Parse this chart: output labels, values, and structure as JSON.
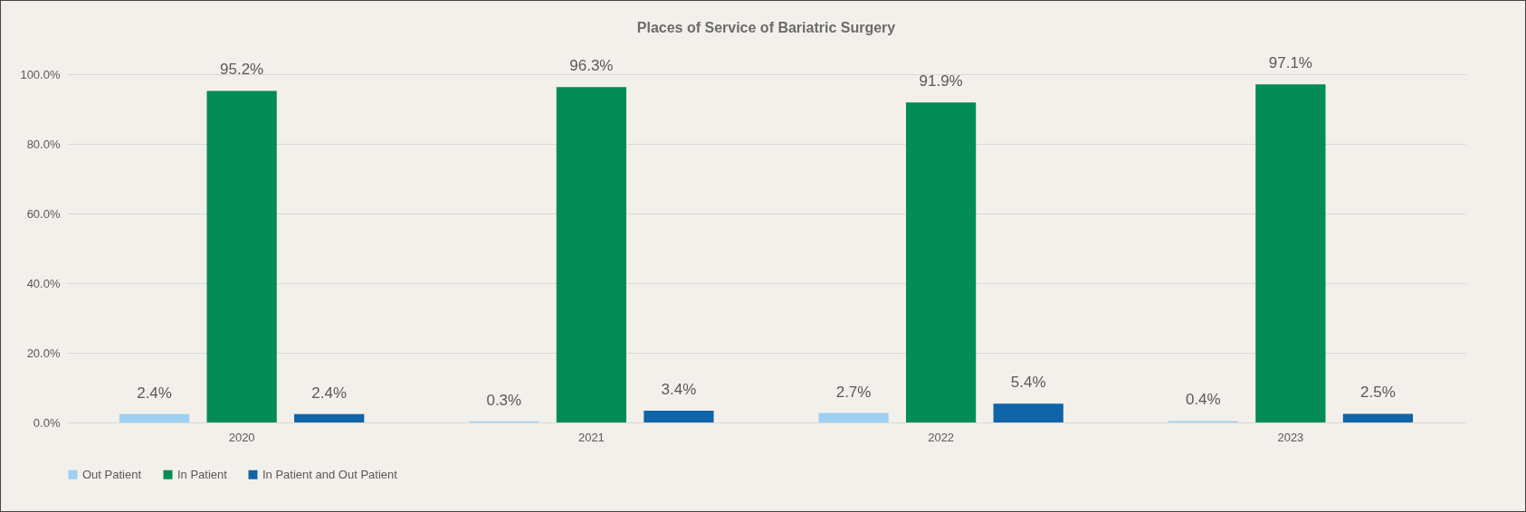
{
  "chart_data": {
    "type": "bar",
    "title": "Places of Service of Bariatric Surgery",
    "categories": [
      "2020",
      "2021",
      "2022",
      "2023"
    ],
    "series": [
      {
        "name": "Out Patient",
        "color": "#9dd0f3",
        "values": [
          2.4,
          0.3,
          2.7,
          0.4
        ],
        "value_labels": [
          "2.4%",
          "0.3%",
          "2.7%",
          "0.4%"
        ]
      },
      {
        "name": "In Patient",
        "color": "#038c55",
        "values": [
          95.2,
          96.3,
          91.9,
          97.1
        ],
        "value_labels": [
          "95.2%",
          "96.3%",
          "91.9%",
          "97.1%"
        ]
      },
      {
        "name": "In Patient and Out Patient",
        "color": "#1064a8",
        "values": [
          2.4,
          3.4,
          5.4,
          2.5
        ],
        "value_labels": [
          "2.4%",
          "3.4%",
          "5.4%",
          "2.5%"
        ]
      }
    ],
    "ylim": [
      0,
      100
    ],
    "yticks": [
      {
        "value": 0,
        "label": "0.0%"
      },
      {
        "value": 20,
        "label": "20.0%"
      },
      {
        "value": 40,
        "label": "40.0%"
      },
      {
        "value": 60,
        "label": "60.0%"
      },
      {
        "value": 80,
        "label": "80.0%"
      },
      {
        "value": 100,
        "label": "100.0%"
      }
    ],
    "grid": "y",
    "legend": "bottom"
  }
}
